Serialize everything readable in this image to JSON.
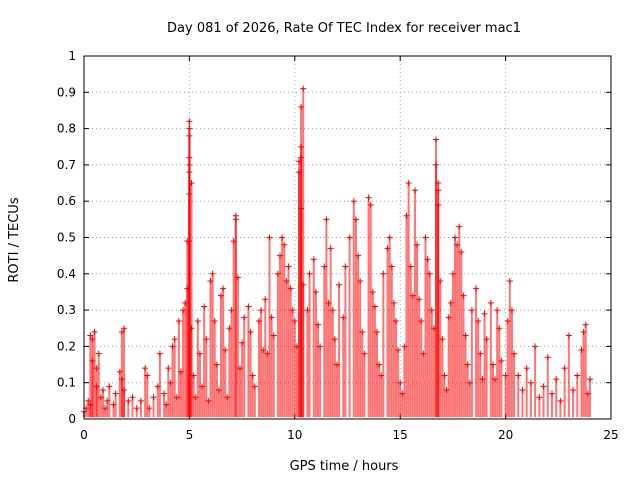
{
  "chart_data": {
    "type": "scatter",
    "title": "Day 081 of 2026, Rate Of TEC Index for receiver mac1",
    "xlabel": "GPS time / hours",
    "ylabel": "ROTI / TECUs",
    "xlim": [
      0,
      25
    ],
    "ylim": [
      0,
      1
    ],
    "xticks": [
      0,
      5,
      10,
      15,
      20,
      25
    ],
    "yticks": [
      0,
      0.1,
      0.2,
      0.3,
      0.4,
      0.5,
      0.6,
      0.7,
      0.8,
      0.9,
      1
    ],
    "grid": true,
    "marker": "+",
    "color": "#ff0000",
    "series": [
      {
        "points": [
          [
            0.0,
            0.02
          ],
          [
            0.1,
            0.03
          ],
          [
            0.2,
            0.05
          ],
          [
            0.3,
            0.04
          ],
          [
            0.3,
            0.23
          ],
          [
            0.4,
            0.22
          ],
          [
            0.5,
            0.24
          ],
          [
            0.4,
            0.16
          ],
          [
            0.6,
            0.14
          ],
          [
            0.7,
            0.18
          ],
          [
            0.6,
            0.09
          ],
          [
            0.8,
            0.06
          ],
          [
            0.9,
            0.08
          ],
          [
            1.0,
            0.03
          ],
          [
            1.1,
            0.05
          ],
          [
            1.2,
            0.09
          ],
          [
            1.4,
            0.04
          ],
          [
            1.5,
            0.07
          ],
          [
            1.7,
            0.13
          ],
          [
            1.8,
            0.11
          ],
          [
            1.8,
            0.24
          ],
          [
            1.9,
            0.25
          ],
          [
            1.9,
            0.08
          ],
          [
            2.1,
            0.05
          ],
          [
            2.3,
            0.06
          ],
          [
            2.5,
            0.03
          ],
          [
            2.7,
            0.05
          ],
          [
            2.9,
            0.14
          ],
          [
            3.0,
            0.12
          ],
          [
            3.1,
            0.03
          ],
          [
            3.3,
            0.06
          ],
          [
            3.5,
            0.09
          ],
          [
            3.6,
            0.18
          ],
          [
            3.8,
            0.07
          ],
          [
            3.9,
            0.04
          ],
          [
            4.0,
            0.14
          ],
          [
            4.1,
            0.1
          ],
          [
            4.2,
            0.2
          ],
          [
            4.3,
            0.22
          ],
          [
            4.4,
            0.06
          ],
          [
            4.5,
            0.27
          ],
          [
            4.6,
            0.13
          ],
          [
            4.7,
            0.3
          ],
          [
            4.8,
            0.32
          ],
          [
            4.9,
            0.36
          ],
          [
            4.9,
            0.49
          ],
          [
            5.0,
            0.49
          ],
          [
            5.0,
            0.62
          ],
          [
            5.0,
            0.68
          ],
          [
            5.0,
            0.7
          ],
          [
            5.0,
            0.72
          ],
          [
            5.0,
            0.78
          ],
          [
            5.0,
            0.8
          ],
          [
            5.0,
            0.82
          ],
          [
            5.1,
            0.65
          ],
          [
            5.1,
            0.25
          ],
          [
            5.2,
            0.12
          ],
          [
            5.3,
            0.06
          ],
          [
            5.4,
            0.27
          ],
          [
            5.5,
            0.18
          ],
          [
            5.6,
            0.09
          ],
          [
            5.7,
            0.31
          ],
          [
            5.8,
            0.22
          ],
          [
            5.9,
            0.05
          ],
          [
            6.0,
            0.38
          ],
          [
            6.1,
            0.4
          ],
          [
            6.2,
            0.27
          ],
          [
            6.3,
            0.15
          ],
          [
            6.4,
            0.08
          ],
          [
            6.5,
            0.34
          ],
          [
            6.6,
            0.36
          ],
          [
            6.7,
            0.19
          ],
          [
            6.8,
            0.06
          ],
          [
            6.9,
            0.25
          ],
          [
            7.0,
            0.3
          ],
          [
            7.1,
            0.49
          ],
          [
            7.2,
            0.55
          ],
          [
            7.2,
            0.56
          ],
          [
            7.3,
            0.39
          ],
          [
            7.4,
            0.14
          ],
          [
            7.5,
            0.21
          ],
          [
            7.6,
            0.28
          ],
          [
            7.8,
            0.31
          ],
          [
            7.9,
            0.24
          ],
          [
            8.0,
            0.12
          ],
          [
            8.1,
            0.09
          ],
          [
            8.3,
            0.27
          ],
          [
            8.4,
            0.3
          ],
          [
            8.5,
            0.19
          ],
          [
            8.6,
            0.33
          ],
          [
            8.7,
            0.18
          ],
          [
            8.8,
            0.5
          ],
          [
            8.9,
            0.28
          ],
          [
            9.0,
            0.23
          ],
          [
            9.2,
            0.4
          ],
          [
            9.3,
            0.45
          ],
          [
            9.4,
            0.5
          ],
          [
            9.5,
            0.48
          ],
          [
            9.6,
            0.38
          ],
          [
            9.7,
            0.42
          ],
          [
            9.8,
            0.36
          ],
          [
            9.9,
            0.3
          ],
          [
            10.0,
            0.27
          ],
          [
            10.1,
            0.2
          ],
          [
            10.2,
            0.68
          ],
          [
            10.2,
            0.71
          ],
          [
            10.3,
            0.72
          ],
          [
            10.3,
            0.75
          ],
          [
            10.3,
            0.86
          ],
          [
            10.4,
            0.91
          ],
          [
            10.3,
            0.58
          ],
          [
            10.4,
            0.37
          ],
          [
            10.6,
            0.3
          ],
          [
            10.7,
            0.4
          ],
          [
            10.9,
            0.44
          ],
          [
            11.0,
            0.35
          ],
          [
            11.1,
            0.26
          ],
          [
            11.2,
            0.2
          ],
          [
            11.4,
            0.42
          ],
          [
            11.5,
            0.55
          ],
          [
            11.6,
            0.32
          ],
          [
            11.7,
            0.47
          ],
          [
            11.8,
            0.3
          ],
          [
            11.9,
            0.22
          ],
          [
            12.0,
            0.15
          ],
          [
            12.1,
            0.37
          ],
          [
            12.3,
            0.28
          ],
          [
            12.4,
            0.42
          ],
          [
            12.6,
            0.5
          ],
          [
            12.8,
            0.6
          ],
          [
            12.9,
            0.55
          ],
          [
            13.0,
            0.45
          ],
          [
            13.1,
            0.38
          ],
          [
            13.2,
            0.24
          ],
          [
            13.3,
            0.18
          ],
          [
            13.5,
            0.61
          ],
          [
            13.6,
            0.59
          ],
          [
            13.7,
            0.35
          ],
          [
            13.8,
            0.31
          ],
          [
            13.9,
            0.24
          ],
          [
            14.0,
            0.15
          ],
          [
            14.1,
            0.12
          ],
          [
            14.2,
            0.4
          ],
          [
            14.4,
            0.47
          ],
          [
            14.5,
            0.5
          ],
          [
            14.6,
            0.42
          ],
          [
            14.7,
            0.32
          ],
          [
            14.8,
            0.27
          ],
          [
            14.9,
            0.19
          ],
          [
            15.0,
            0.1
          ],
          [
            15.1,
            0.07
          ],
          [
            15.2,
            0.2
          ],
          [
            15.3,
            0.56
          ],
          [
            15.4,
            0.65
          ],
          [
            15.5,
            0.42
          ],
          [
            15.6,
            0.34
          ],
          [
            15.7,
            0.63
          ],
          [
            15.8,
            0.48
          ],
          [
            15.9,
            0.33
          ],
          [
            16.0,
            0.27
          ],
          [
            16.1,
            0.18
          ],
          [
            16.2,
            0.5
          ],
          [
            16.3,
            0.44
          ],
          [
            16.4,
            0.4
          ],
          [
            16.5,
            0.3
          ],
          [
            16.6,
            0.25
          ],
          [
            16.7,
            0.77
          ],
          [
            16.7,
            0.7
          ],
          [
            16.8,
            0.63
          ],
          [
            16.8,
            0.65
          ],
          [
            16.8,
            0.59
          ],
          [
            16.9,
            0.38
          ],
          [
            17.0,
            0.22
          ],
          [
            17.1,
            0.12
          ],
          [
            17.2,
            0.08
          ],
          [
            17.3,
            0.28
          ],
          [
            17.4,
            0.32
          ],
          [
            17.5,
            0.4
          ],
          [
            17.6,
            0.5
          ],
          [
            17.7,
            0.48
          ],
          [
            17.8,
            0.53
          ],
          [
            17.9,
            0.46
          ],
          [
            18.0,
            0.34
          ],
          [
            18.1,
            0.23
          ],
          [
            18.2,
            0.15
          ],
          [
            18.3,
            0.1
          ],
          [
            18.4,
            0.3
          ],
          [
            18.6,
            0.36
          ],
          [
            18.7,
            0.27
          ],
          [
            18.8,
            0.18
          ],
          [
            18.9,
            0.11
          ],
          [
            19.0,
            0.29
          ],
          [
            19.1,
            0.22
          ],
          [
            19.3,
            0.32
          ],
          [
            19.4,
            0.15
          ],
          [
            19.5,
            0.11
          ],
          [
            19.6,
            0.3
          ],
          [
            19.7,
            0.25
          ],
          [
            19.8,
            0.16
          ],
          [
            20.0,
            0.12
          ],
          [
            20.1,
            0.27
          ],
          [
            20.2,
            0.38
          ],
          [
            20.3,
            0.3
          ],
          [
            20.4,
            0.18
          ],
          [
            20.6,
            0.12
          ],
          [
            20.8,
            0.08
          ],
          [
            21.0,
            0.14
          ],
          [
            21.2,
            0.1
          ],
          [
            21.4,
            0.2
          ],
          [
            21.6,
            0.06
          ],
          [
            21.8,
            0.09
          ],
          [
            22.0,
            0.17
          ],
          [
            22.2,
            0.07
          ],
          [
            22.4,
            0.11
          ],
          [
            22.6,
            0.05
          ],
          [
            22.8,
            0.14
          ],
          [
            23.0,
            0.23
          ],
          [
            23.2,
            0.08
          ],
          [
            23.4,
            0.12
          ],
          [
            23.6,
            0.19
          ],
          [
            23.7,
            0.24
          ],
          [
            23.8,
            0.26
          ],
          [
            23.9,
            0.07
          ],
          [
            24.0,
            0.11
          ]
        ]
      }
    ]
  }
}
